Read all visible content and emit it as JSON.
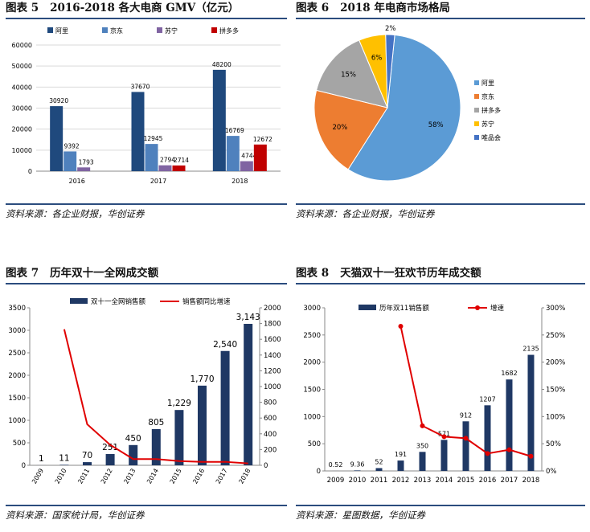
{
  "figures": [
    {
      "label": "图表 5",
      "title": "2016-2018 各大电商 GMV（亿元）",
      "source": "资料来源：各企业财报，华创证券",
      "chart_data": {
        "type": "bar",
        "categories": [
          "2016",
          "2017",
          "2018"
        ],
        "series": [
          {
            "name": "阿里",
            "color": "#1f497d",
            "values": [
              30920,
              37670,
              48200
            ],
            "labels": [
              "30920",
              "37670",
              "48200"
            ]
          },
          {
            "name": "京东",
            "color": "#4f81bd",
            "values": [
              9392,
              12945,
              16769
            ],
            "labels": [
              "9392",
              "12945",
              "16769"
            ]
          },
          {
            "name": "苏宁",
            "color": "#8064a2",
            "values": [
              1793,
              2794,
              4744
            ],
            "labels": [
              "1793",
              "2794",
              "4744"
            ]
          },
          {
            "name": "拼多多",
            "color": "#c00000",
            "values": [
              null,
              2714,
              12672
            ],
            "labels": [
              "",
              "2714",
              "12672"
            ]
          }
        ],
        "yticks": [
          "0",
          "10000",
          "20000",
          "30000",
          "40000",
          "50000",
          "60000"
        ],
        "ylim": [
          0,
          60000
        ],
        "grid": true,
        "legend": "top"
      }
    },
    {
      "label": "图表 6",
      "title": "2018 年电商市场格局",
      "source": "资料来源：各企业财报，华创证券",
      "chart_data": {
        "type": "pie",
        "slices": [
          {
            "name": "阿里",
            "value": 58,
            "label": "58%",
            "color": "#5b9bd5"
          },
          {
            "name": "京东",
            "value": 20,
            "label": "20%",
            "color": "#ed7d31"
          },
          {
            "name": "拼多多",
            "value": 15,
            "label": "15%",
            "color": "#a5a5a5"
          },
          {
            "name": "苏宁",
            "value": 6,
            "label": "6%",
            "color": "#ffc000"
          },
          {
            "name": "唯品会",
            "value": 2,
            "label": "2%",
            "color": "#4472c4"
          }
        ],
        "legend": "right"
      }
    },
    {
      "label": "图表 7",
      "title": "历年双十一全网成交额",
      "source": "资料来源：国家统计局，华创证券",
      "chart_data": {
        "type": "bar",
        "categories": [
          "2009",
          "2010",
          "2011",
          "2012",
          "2013",
          "2014",
          "2015",
          "2016",
          "2017",
          "2018"
        ],
        "series": [
          {
            "name": "双十一全网销售额",
            "axis": "left",
            "color": "#1f3864",
            "values": [
              1,
              11,
              70,
              251,
              450,
              805,
              1229,
              1770,
              2540,
              3143
            ],
            "labels": [
              "1",
              "11",
              "70",
              "251",
              "450",
              "805",
              "1,229",
              "1,770",
              "2,540",
              "3,143"
            ]
          },
          {
            "name": "销售额同比增速",
            "axis": "right",
            "color": "#e00000",
            "type": "line",
            "values": [
              null,
              1727,
              521,
              259,
              79,
              79,
              53,
              44,
              44,
              24
            ]
          }
        ],
        "yticks_left": [
          "0",
          "500",
          "1000",
          "1500",
          "2000",
          "2500",
          "3000",
          "3500"
        ],
        "ylim_left": [
          0,
          3500
        ],
        "yticks_right": [
          "0",
          "200",
          "400",
          "600",
          "800",
          "1000",
          "1200",
          "1400",
          "1600",
          "1800",
          "2000"
        ],
        "ylim_right": [
          0,
          2000
        ],
        "legend": "top"
      }
    },
    {
      "label": "图表 8",
      "title": "天猫双十一狂欢节历年成交额",
      "source": "资料来源：星图数据，华创证券",
      "chart_data": {
        "type": "bar",
        "categories": [
          "2009",
          "2010",
          "2011",
          "2012",
          "2013",
          "2014",
          "2015",
          "2016",
          "2017",
          "2018"
        ],
        "series": [
          {
            "name": "历年双11销售额",
            "axis": "left",
            "color": "#1f3864",
            "values": [
              0.52,
              9.36,
              52,
              191,
              350,
              571,
              912,
              1207,
              1682,
              2135
            ],
            "labels": [
              "0.52",
              "9.36",
              "52",
              "191",
              "350",
              "571",
              "912",
              "1207",
              "1682",
              "2135"
            ]
          },
          {
            "name": "增速",
            "axis": "right",
            "color": "#e00000",
            "type": "line",
            "values": [
              null,
              null,
              null,
              266,
              83,
              63,
              60,
              32,
              39,
              27
            ]
          }
        ],
        "yticks_left": [
          "0",
          "500",
          "1000",
          "1500",
          "2000",
          "2500",
          "3000"
        ],
        "ylim_left": [
          0,
          3000
        ],
        "yticks_right": [
          "0%",
          "50%",
          "100%",
          "150%",
          "200%",
          "250%",
          "300%"
        ],
        "ylim_right": [
          0,
          300
        ],
        "legend": "top"
      }
    }
  ]
}
